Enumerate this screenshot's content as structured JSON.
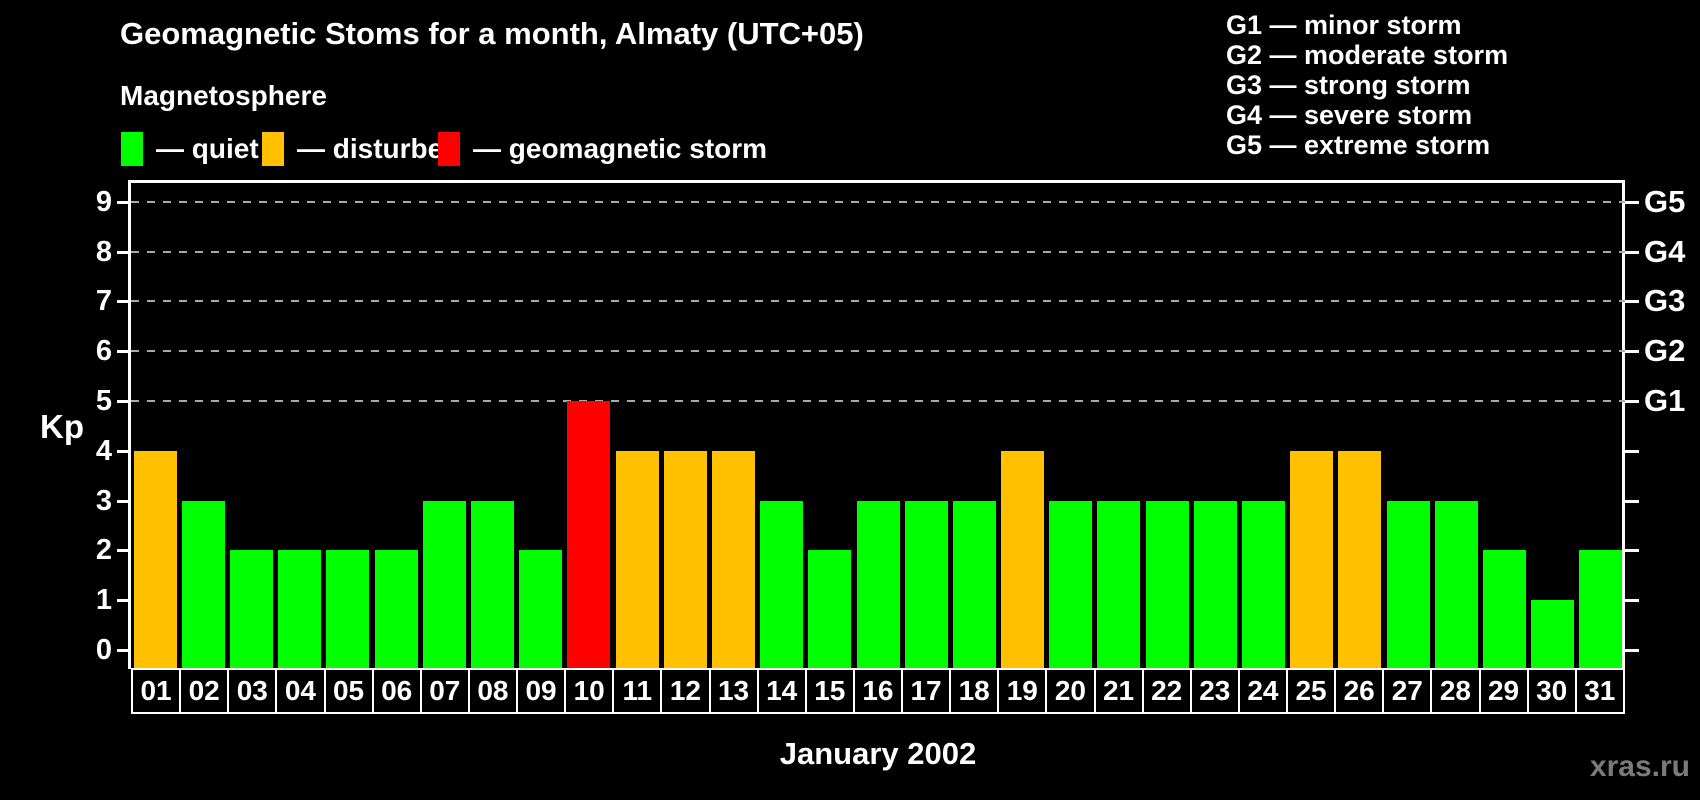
{
  "title": "Geomagnetic Stoms for a month, Almaty (UTC+05)",
  "subtitle": "Magnetosphere",
  "legend": {
    "items": [
      {
        "name": "quiet",
        "label": "— quiet",
        "color": "#00ff00"
      },
      {
        "name": "disturbed",
        "label": "— disturbed",
        "color": "#ffc000"
      },
      {
        "name": "storm",
        "label": "— geomagnetic storm",
        "color": "#ff0000"
      }
    ]
  },
  "g_scale_legend": [
    "G1 — minor storm",
    "G2 — moderate storm",
    "G3 — strong storm",
    "G4 — severe storm",
    "G5 — extreme storm"
  ],
  "watermark": "xras.ru",
  "chart_data": {
    "type": "bar",
    "title": "Geomagnetic Stoms for a month, Almaty (UTC+05)",
    "xlabel": "January 2002",
    "ylabel": "Kp",
    "ylim": [
      0,
      9
    ],
    "yticks": [
      0,
      1,
      2,
      3,
      4,
      5,
      6,
      7,
      8,
      9
    ],
    "gridlines_at": [
      5,
      6,
      7,
      8,
      9
    ],
    "grid": "dashed horizontal at G-storm levels only",
    "legend_position": "top-left",
    "right_axis_labels": [
      {
        "label": "G5",
        "kp": 9
      },
      {
        "label": "G4",
        "kp": 8
      },
      {
        "label": "G3",
        "kp": 7
      },
      {
        "label": "G2",
        "kp": 6
      },
      {
        "label": "G1",
        "kp": 5
      }
    ],
    "categories": [
      "01",
      "02",
      "03",
      "04",
      "05",
      "06",
      "07",
      "08",
      "09",
      "10",
      "11",
      "12",
      "13",
      "14",
      "15",
      "16",
      "17",
      "18",
      "19",
      "20",
      "21",
      "22",
      "23",
      "24",
      "25",
      "26",
      "27",
      "28",
      "29",
      "30",
      "31"
    ],
    "values": [
      4,
      3,
      2,
      2,
      2,
      2,
      3,
      3,
      2,
      5,
      4,
      4,
      4,
      3,
      2,
      3,
      3,
      3,
      4,
      3,
      3,
      3,
      3,
      3,
      4,
      4,
      3,
      3,
      2,
      1,
      2
    ],
    "statuses": [
      "disturbed",
      "quiet",
      "quiet",
      "quiet",
      "quiet",
      "quiet",
      "quiet",
      "quiet",
      "quiet",
      "storm",
      "disturbed",
      "disturbed",
      "disturbed",
      "quiet",
      "quiet",
      "quiet",
      "quiet",
      "quiet",
      "disturbed",
      "quiet",
      "quiet",
      "quiet",
      "quiet",
      "quiet",
      "disturbed",
      "disturbed",
      "quiet",
      "quiet",
      "quiet",
      "quiet",
      "quiet"
    ],
    "status_colors": {
      "quiet": "#00ff00",
      "disturbed": "#ffc000",
      "storm": "#ff0000"
    }
  }
}
